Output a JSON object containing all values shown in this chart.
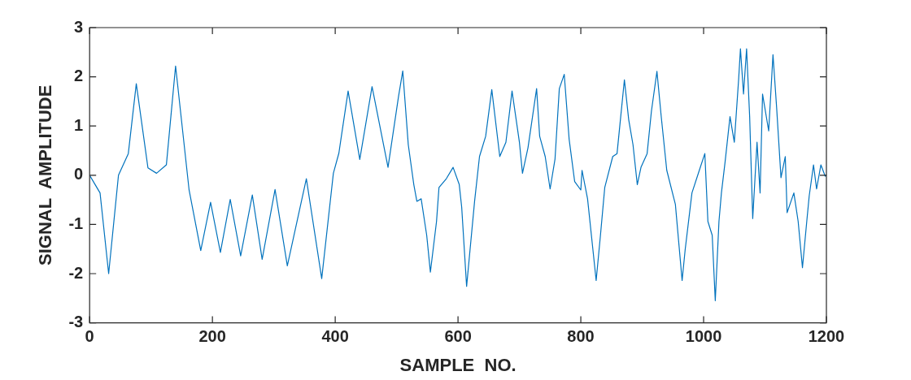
{
  "chart_data": {
    "type": "line",
    "xlabel": "SAMPLE  NO.",
    "ylabel": "SIGNAL  AMPLITUDE",
    "xlim": [
      0,
      1200
    ],
    "xticks": [
      0,
      200,
      400,
      600,
      800,
      1000,
      1200
    ],
    "ylim": [
      -3,
      3
    ],
    "yticks": [
      -3,
      -2,
      -1,
      0,
      1,
      2,
      3
    ],
    "grid": false,
    "legend": false,
    "series": [
      {
        "color": "#0072bd",
        "x": [
          0,
          17,
          31,
          47,
          63,
          76,
          95,
          109,
          125,
          140,
          162,
          181,
          197,
          213,
          229,
          246,
          265,
          281,
          302,
          322,
          353,
          378,
          397,
          406,
          410,
          421,
          440,
          460,
          486,
          503,
          510,
          519,
          528,
          533,
          540,
          549,
          555,
          565,
          569,
          581,
          592,
          602,
          606,
          614,
          627,
          635,
          645,
          655,
          668,
          678,
          688,
          700,
          705,
          714,
          728,
          733,
          742,
          750,
          758,
          765,
          773,
          781,
          790,
          800,
          802,
          811,
          825,
          832,
          839,
          852,
          859,
          871,
          878,
          885,
          892,
          898,
          908,
          915,
          924,
          931,
          940,
          954,
          965,
          970,
          981,
          993,
          1002,
          1007,
          1014,
          1019,
          1025,
          1029,
          1035,
          1043,
          1050,
          1057,
          1060,
          1065,
          1070,
          1075,
          1080,
          1087,
          1092,
          1096,
          1106,
          1113,
          1119,
          1126,
          1133,
          1136,
          1147,
          1154,
          1161,
          1168,
          1172,
          1179,
          1184,
          1191,
          1198,
          1200
        ],
        "values": [
          0,
          -0.36,
          -2.0,
          0,
          0.44,
          1.86,
          0.15,
          0.04,
          0.21,
          2.22,
          -0.3,
          -1.53,
          -0.55,
          -1.57,
          -0.49,
          -1.64,
          -0.4,
          -1.71,
          -0.29,
          -1.84,
          -0.07,
          -2.1,
          0.04,
          0.45,
          0.79,
          1.71,
          0.32,
          1.8,
          0.16,
          1.59,
          2.12,
          0.62,
          -0.19,
          -0.53,
          -0.48,
          -1.22,
          -1.97,
          -0.94,
          -0.25,
          -0.07,
          0.16,
          -0.19,
          -0.65,
          -2.26,
          -0.53,
          0.38,
          0.79,
          1.74,
          0.38,
          0.67,
          1.71,
          0.67,
          0.04,
          0.56,
          1.76,
          0.79,
          0.38,
          -0.28,
          0.33,
          1.76,
          2.05,
          0.73,
          -0.13,
          -0.3,
          0.1,
          -0.48,
          -2.14,
          -1.22,
          -0.25,
          0.38,
          0.44,
          1.94,
          1.13,
          0.62,
          -0.19,
          0.16,
          0.44,
          1.3,
          2.11,
          1.19,
          0.1,
          -0.59,
          -2.14,
          -1.51,
          -0.36,
          0.1,
          0.44,
          -0.94,
          -1.22,
          -2.55,
          -0.94,
          -0.36,
          0.27,
          1.19,
          0.67,
          1.94,
          2.57,
          1.65,
          2.57,
          1.19,
          -0.88,
          0.67,
          -0.36,
          1.65,
          0.9,
          2.45,
          1.36,
          -0.05,
          0.38,
          -0.76,
          -0.36,
          -0.94,
          -1.88,
          -0.94,
          -0.42,
          0.21,
          -0.28,
          0.21,
          -0.02,
          0
        ]
      }
    ]
  }
}
